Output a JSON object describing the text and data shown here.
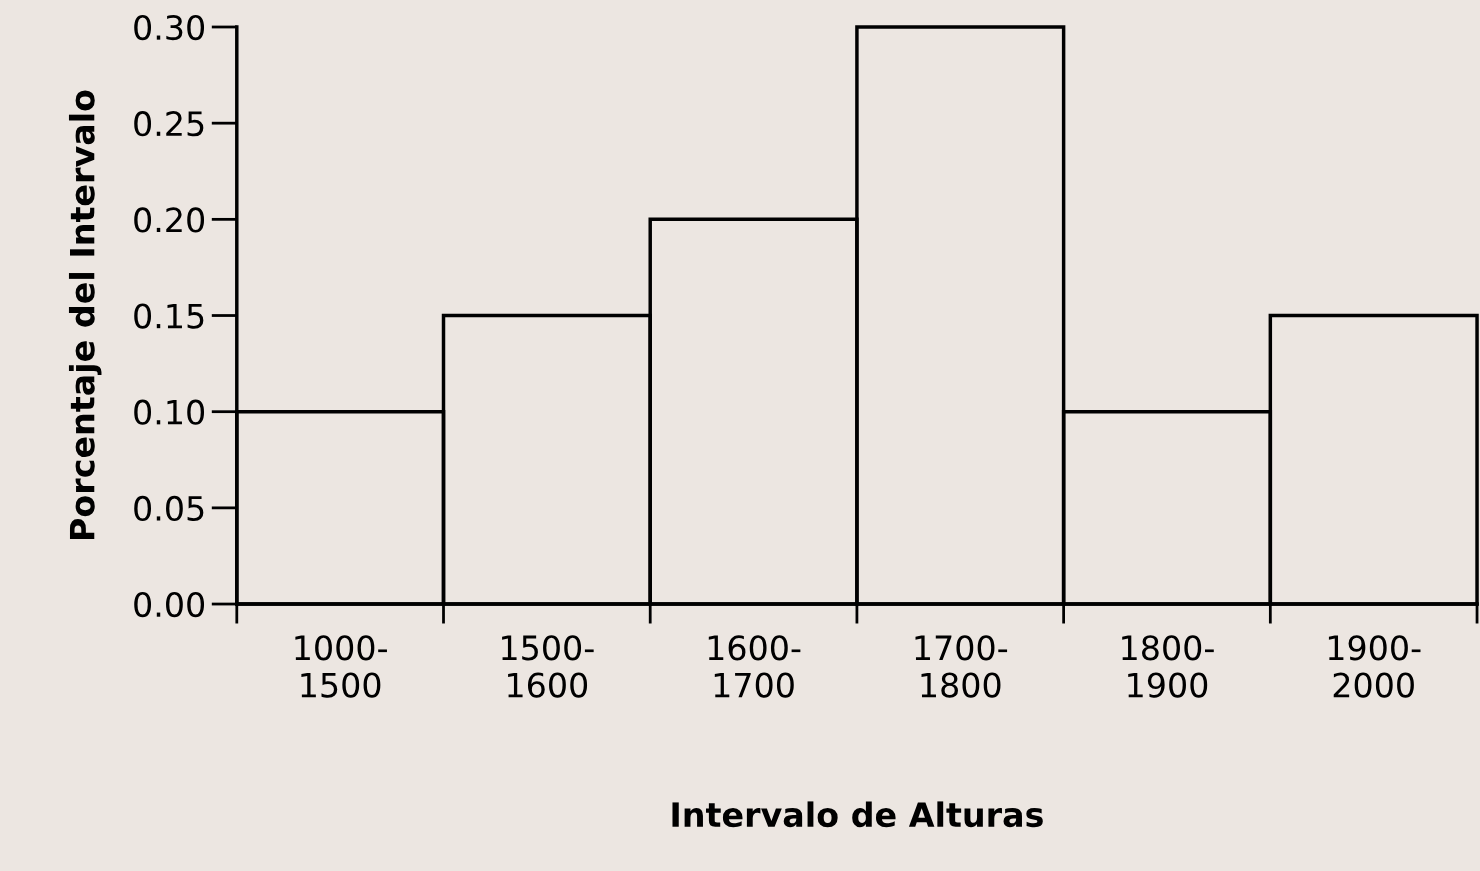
{
  "chart_data": {
    "type": "bar",
    "xlabel": "Intervalo de Alturas",
    "ylabel": "Porcentaje del Intervalo",
    "categories": [
      "1000-\n1500",
      "1500-\n1600",
      "1600-\n1700",
      "1700-\n1800",
      "1800-\n1900",
      "1900-\n2000"
    ],
    "values": [
      0.1,
      0.15,
      0.2,
      0.3,
      0.1,
      0.15
    ],
    "color": "#000000",
    "ylim": [
      0,
      0.3
    ],
    "yticks": [
      {
        "value": 0,
        "label": "0.00"
      },
      0.05,
      {
        "value": 0.1,
        "label": "0.10"
      },
      0.15,
      {
        "value": 0.2,
        "label": "0.20"
      },
      0.25,
      {
        "value": 0.3,
        "label": "0.30"
      }
    ],
    "grid": false
  }
}
